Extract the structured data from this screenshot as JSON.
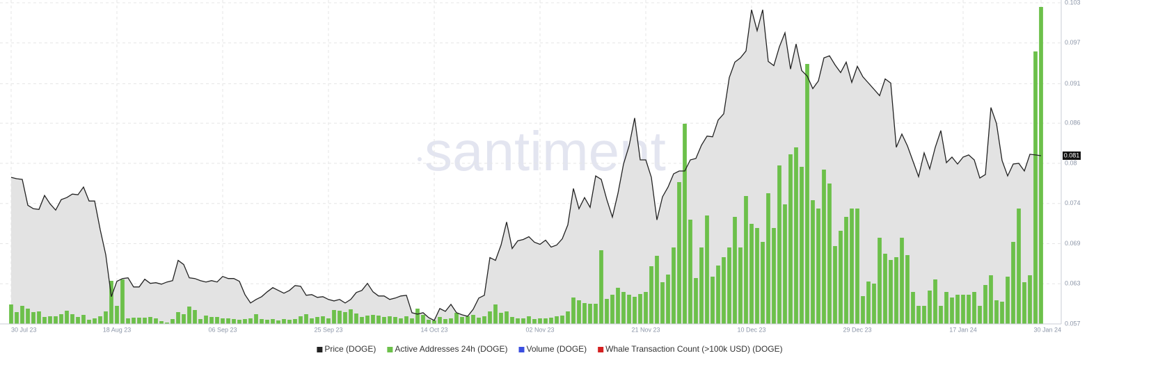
{
  "chart_data": {
    "type": "price_volume",
    "watermark": "santiment",
    "last_price_label": "0.081",
    "categories": [
      "30 Jul 23",
      null,
      null,
      null,
      null,
      null,
      null,
      null,
      null,
      null,
      null,
      null,
      null,
      null,
      null,
      null,
      null,
      null,
      null,
      "18 Aug 23",
      null,
      null,
      null,
      null,
      null,
      null,
      null,
      null,
      null,
      null,
      null,
      null,
      null,
      null,
      null,
      null,
      null,
      null,
      "06 Sep 23",
      null,
      null,
      null,
      null,
      null,
      null,
      null,
      null,
      null,
      null,
      null,
      null,
      null,
      null,
      null,
      null,
      null,
      null,
      "25 Sep 23",
      null,
      null,
      null,
      null,
      null,
      null,
      null,
      null,
      null,
      null,
      null,
      null,
      null,
      null,
      null,
      null,
      null,
      null,
      "14 Oct 23",
      null,
      null,
      null,
      null,
      null,
      null,
      null,
      null,
      null,
      null,
      null,
      null,
      null,
      null,
      null,
      null,
      null,
      null,
      "02 Nov 23",
      null,
      null,
      null,
      null,
      null,
      null,
      null,
      null,
      null,
      null,
      null,
      null,
      null,
      null,
      null,
      null,
      null,
      null,
      "21 Nov 23",
      null,
      null,
      null,
      null,
      null,
      null,
      null,
      null,
      null,
      null,
      null,
      null,
      null,
      null,
      null,
      null,
      null,
      null,
      "10 Dec 23",
      null,
      null,
      null,
      null,
      null,
      null,
      null,
      null,
      null,
      null,
      null,
      null,
      null,
      null,
      null,
      null,
      null,
      null,
      "29 Dec 23",
      null,
      null,
      null,
      null,
      null,
      null,
      null,
      null,
      null,
      null,
      null,
      null,
      null,
      null,
      null,
      null,
      null,
      null,
      "17 Jan 24",
      null,
      null,
      null,
      null,
      null,
      null,
      null,
      null,
      null,
      null,
      null,
      null,
      null,
      "30 Jan 24"
    ],
    "series": [
      {
        "name": "Price (DOGE)",
        "color": "#222222",
        "kind": "area-line",
        "values": [
          0.078,
          0.0778,
          0.0777,
          0.074,
          0.0735,
          0.0734,
          0.0754,
          0.0742,
          0.0733,
          0.0748,
          0.0751,
          0.0756,
          0.0755,
          0.0766,
          0.0746,
          0.0746,
          0.0705,
          0.0669,
          0.0609,
          0.0631,
          0.0635,
          0.0636,
          0.0623,
          0.0623,
          0.0634,
          0.0628,
          0.0629,
          0.0627,
          0.063,
          0.0632,
          0.0661,
          0.0655,
          0.0636,
          0.0635,
          0.0632,
          0.063,
          0.0632,
          0.063,
          0.0638,
          0.0635,
          0.0635,
          0.0631,
          0.0612,
          0.06,
          0.0605,
          0.0609,
          0.0616,
          0.0622,
          0.0618,
          0.0614,
          0.0618,
          0.0625,
          0.0624,
          0.0611,
          0.0612,
          0.0608,
          0.0609,
          0.0605,
          0.0603,
          0.0605,
          0.06,
          0.0605,
          0.0615,
          0.0618,
          0.0628,
          0.0616,
          0.061,
          0.061,
          0.0605,
          0.0607,
          0.061,
          0.0611,
          0.0586,
          0.0584,
          0.0586,
          0.0579,
          0.0575,
          0.0592,
          0.0588,
          0.0598,
          0.0586,
          0.0583,
          0.0581,
          0.0591,
          0.0607,
          0.0611,
          0.0665,
          0.0661,
          0.0683,
          0.0716,
          0.0678,
          0.0689,
          0.0691,
          0.0695,
          0.0687,
          0.0684,
          0.069,
          0.068,
          0.0683,
          0.0692,
          0.0712,
          0.0764,
          0.0735,
          0.0751,
          0.0737,
          0.0782,
          0.0777,
          0.0748,
          0.0723,
          0.0757,
          0.0799,
          0.0825,
          0.0865,
          0.0805,
          0.0805,
          0.078,
          0.0719,
          0.0752,
          0.0766,
          0.0785,
          0.0789,
          0.0789,
          0.0805,
          0.0807,
          0.0826,
          0.0839,
          0.0838,
          0.0862,
          0.0871,
          0.0923,
          0.0945,
          0.0951,
          0.0961,
          0.102,
          0.099,
          0.102,
          0.0946,
          0.094,
          0.0967,
          0.0987,
          0.0935,
          0.0971,
          0.0933,
          0.0925,
          0.0907,
          0.0918,
          0.0951,
          0.0954,
          0.0941,
          0.093,
          0.0945,
          0.0916,
          0.0939,
          0.0924,
          0.0915,
          0.0906,
          0.0897,
          0.0921,
          0.0915,
          0.0823,
          0.0842,
          0.0825,
          0.0803,
          0.0781,
          0.0815,
          0.0792,
          0.0823,
          0.0847,
          0.0801,
          0.0809,
          0.0799,
          0.0809,
          0.0812,
          0.0805,
          0.0779,
          0.0784,
          0.088,
          0.0857,
          0.0804,
          0.0782,
          0.0799,
          0.08,
          0.0789,
          0.0813,
          0.0812,
          0.0811
        ]
      },
      {
        "name": "Active Addresses 24h (DOGE)",
        "color": "#6cc04a",
        "kind": "bar",
        "axis": "y2",
        "values": [
          28,
          17,
          26,
          22,
          17,
          18,
          10,
          11,
          11,
          14,
          19,
          14,
          10,
          13,
          6,
          8,
          11,
          18,
          62,
          26,
          64,
          8,
          9,
          9,
          9,
          10,
          8,
          4,
          2,
          7,
          17,
          14,
          25,
          20,
          7,
          12,
          10,
          10,
          8,
          8,
          7,
          6,
          7,
          8,
          14,
          7,
          6,
          7,
          5,
          7,
          6,
          7,
          11,
          14,
          8,
          10,
          11,
          8,
          20,
          19,
          17,
          21,
          15,
          10,
          12,
          13,
          12,
          10,
          11,
          10,
          8,
          11,
          8,
          22,
          13,
          6,
          5,
          10,
          7,
          8,
          16,
          10,
          11,
          13,
          9,
          11,
          18,
          28,
          16,
          18,
          10,
          8,
          8,
          11,
          7,
          8,
          8,
          9,
          11,
          12,
          18,
          38,
          34,
          30,
          29,
          29,
          106,
          36,
          42,
          52,
          46,
          42,
          39,
          43,
          46,
          83,
          98,
          60,
          71,
          110,
          204,
          288,
          150,
          66,
          110,
          156,
          68,
          84,
          96,
          110,
          154,
          110,
          184,
          144,
          138,
          118,
          188,
          138,
          228,
          172,
          244,
          254,
          226,
          374,
          178,
          166,
          222,
          202,
          112,
          134,
          154,
          166,
          166,
          40,
          61,
          58,
          124,
          101,
          92,
          96,
          124,
          99,
          46,
          26,
          26,
          48,
          64,
          26,
          46,
          38,
          42,
          42,
          42,
          46,
          26,
          56,
          70,
          34,
          32,
          68,
          118,
          166,
          60,
          70,
          392,
          456
        ]
      }
    ],
    "extra_legend": [
      {
        "name": "Volume (DOGE)",
        "color": "#3b4fe0"
      },
      {
        "name": "Whale Transaction Count (>100k USD) (DOGE)",
        "color": "#d42020"
      }
    ],
    "ylim": [
      0.057,
      0.103
    ],
    "yticks": [
      0.057,
      {
        "value": 0.06275,
        "label": "0.063"
      },
      {
        "value": 0.0685,
        "label": "0.069"
      },
      {
        "value": 0.07425,
        "label": "0.074"
      },
      0.08,
      {
        "value": 0.08575,
        "label": "0.086"
      },
      {
        "value": 0.0914,
        "label": "0.091"
      },
      {
        "value": 0.09725,
        "label": "0.097"
      },
      0.103
    ],
    "grid": true,
    "legend_position": "bottom"
  }
}
